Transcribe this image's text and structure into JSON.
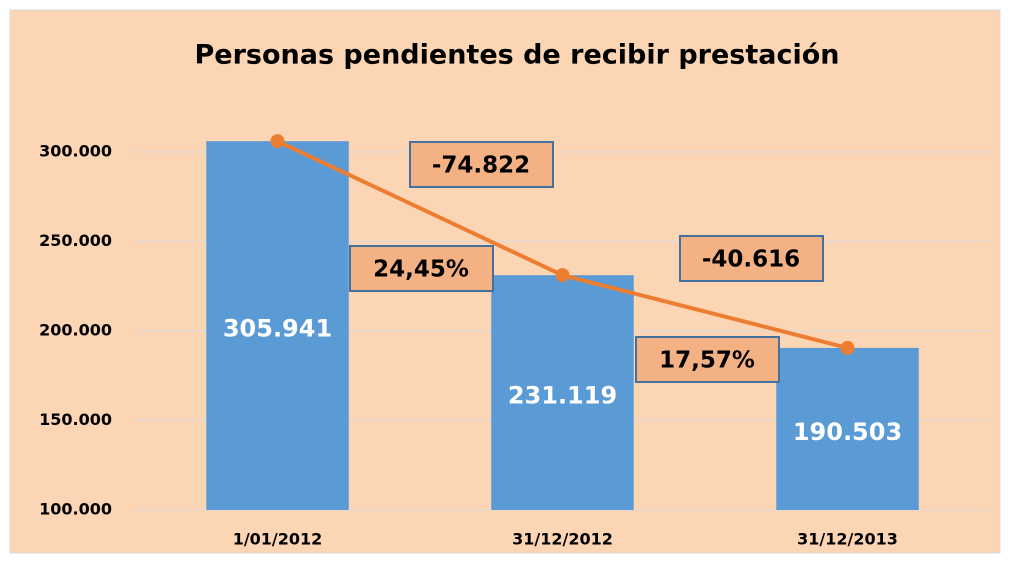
{
  "chart_data": {
    "type": "bar",
    "title": "Personas pendientes de recibir prestación",
    "categories": [
      "1/01/2012",
      "31/12/2012",
      "31/12/2013"
    ],
    "series": [
      {
        "type": "bar",
        "color": "#5b9bd5",
        "values": [
          305941,
          231119,
          190503
        ],
        "value_labels": [
          "305.941",
          "231.119",
          "190.503"
        ]
      },
      {
        "type": "line",
        "color": "#ed7d31",
        "values": [
          305941,
          231119,
          190503
        ]
      }
    ],
    "annotations": [
      "-74.822",
      "24,45%",
      "-40.616",
      "17,57%"
    ],
    "ylim": [
      100000,
      320000
    ],
    "yticks": [
      {
        "value": 100000,
        "label": "100.000"
      },
      {
        "value": 150000,
        "label": "150.000"
      },
      {
        "value": 200000,
        "label": "200.000"
      },
      {
        "value": 250000,
        "label": "250.000"
      },
      {
        "value": 300000,
        "label": "300.000"
      }
    ],
    "grid": true
  }
}
